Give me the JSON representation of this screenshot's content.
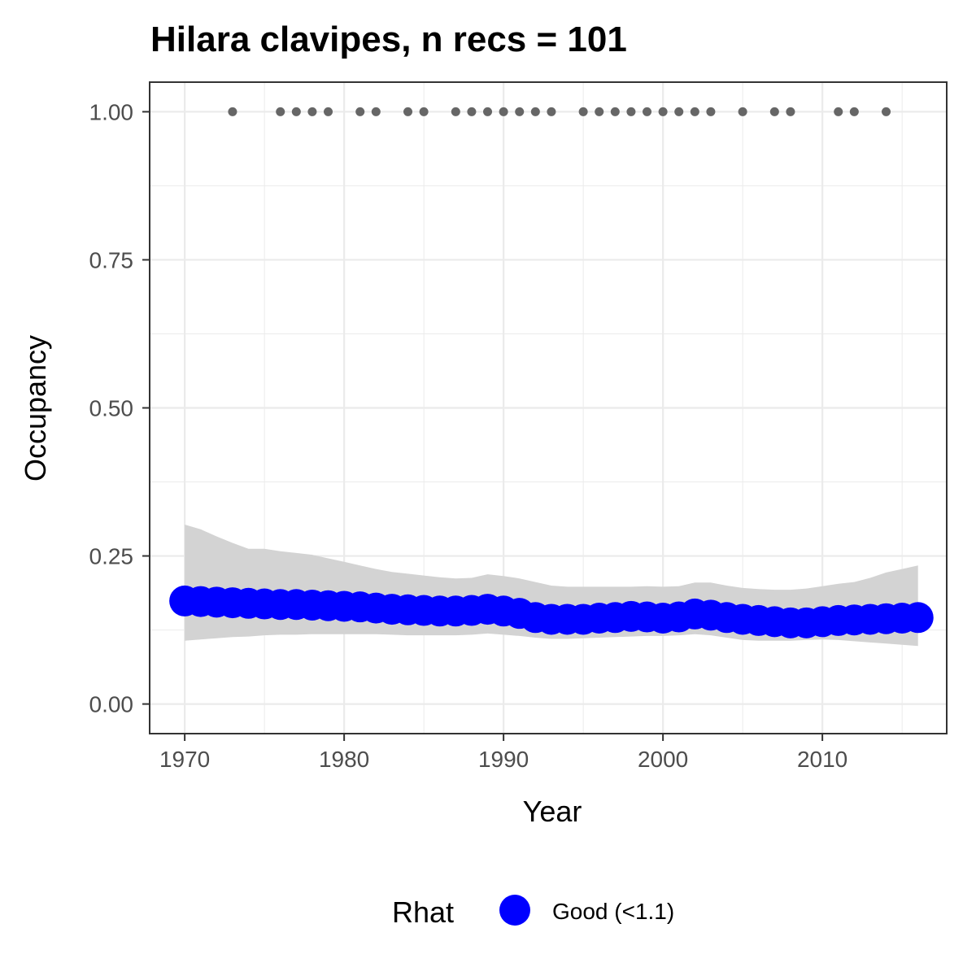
{
  "chart_data": {
    "type": "line",
    "title": "Hilara clavipes, n recs = 101",
    "xlabel": "Year",
    "ylabel": "Occupancy",
    "xlim": [
      1967.8,
      2017.8
    ],
    "ylim": [
      -0.05,
      1.05
    ],
    "x_ticks": [
      1970,
      1980,
      1990,
      2000,
      2010
    ],
    "x_tick_labels": [
      "1970",
      "1980",
      "1990",
      "2000",
      "2010"
    ],
    "y_ticks": [
      0,
      0.25,
      0.5,
      0.75,
      1
    ],
    "y_tick_labels": [
      "0.00",
      "0.25",
      "0.50",
      "0.75",
      "1.00"
    ],
    "grid": true,
    "legend": {
      "position": "bottom",
      "title": "Rhat",
      "entries": [
        {
          "label": "Good (<1.1)",
          "color": "#0000ff"
        }
      ]
    },
    "colors": {
      "series": "#0000ff",
      "ribbon": "#d3d3d3",
      "records": "#666666",
      "grid": "#ebebeb",
      "panel_border": "#333333"
    },
    "record_years": [
      1973,
      1976,
      1977,
      1978,
      1979,
      1981,
      1982,
      1984,
      1985,
      1987,
      1988,
      1989,
      1990,
      1991,
      1992,
      1993,
      1995,
      1996,
      1997,
      1998,
      1999,
      2000,
      2001,
      2002,
      2003,
      2005,
      2007,
      2008,
      2011,
      2012,
      2014
    ],
    "record_value": 1.0,
    "series": [
      {
        "x": [
          1970,
          1971,
          1972,
          1973,
          1974,
          1975,
          1976,
          1977,
          1978,
          1979,
          1980,
          1981,
          1982,
          1983,
          1984,
          1985,
          1986,
          1987,
          1988,
          1989,
          1990,
          1991,
          1992,
          1993,
          1994,
          1995,
          1996,
          1997,
          1998,
          1999,
          2000,
          2001,
          2002,
          2003,
          2004,
          2005,
          2006,
          2007,
          2008,
          2009,
          2010,
          2011,
          2012,
          2013,
          2014,
          2015,
          2016
        ],
        "values": [
          0.174,
          0.173,
          0.172,
          0.171,
          0.17,
          0.169,
          0.168,
          0.168,
          0.167,
          0.166,
          0.165,
          0.164,
          0.162,
          0.16,
          0.159,
          0.158,
          0.157,
          0.157,
          0.158,
          0.16,
          0.157,
          0.153,
          0.146,
          0.143,
          0.143,
          0.143,
          0.145,
          0.146,
          0.148,
          0.147,
          0.145,
          0.147,
          0.152,
          0.15,
          0.146,
          0.143,
          0.141,
          0.139,
          0.137,
          0.137,
          0.139,
          0.141,
          0.142,
          0.143,
          0.144,
          0.145,
          0.146
        ],
        "lower": [
          0.107,
          0.109,
          0.111,
          0.113,
          0.114,
          0.116,
          0.117,
          0.117,
          0.118,
          0.118,
          0.118,
          0.118,
          0.118,
          0.117,
          0.116,
          0.116,
          0.116,
          0.116,
          0.117,
          0.119,
          0.117,
          0.115,
          0.112,
          0.11,
          0.11,
          0.111,
          0.112,
          0.113,
          0.114,
          0.115,
          0.115,
          0.116,
          0.118,
          0.116,
          0.112,
          0.108,
          0.107,
          0.107,
          0.107,
          0.108,
          0.109,
          0.108,
          0.106,
          0.104,
          0.102,
          0.1,
          0.098
        ],
        "upper": [
          0.303,
          0.295,
          0.283,
          0.272,
          0.262,
          0.262,
          0.258,
          0.255,
          0.252,
          0.246,
          0.24,
          0.234,
          0.228,
          0.223,
          0.22,
          0.217,
          0.214,
          0.212,
          0.213,
          0.219,
          0.216,
          0.212,
          0.206,
          0.2,
          0.198,
          0.198,
          0.198,
          0.198,
          0.198,
          0.199,
          0.198,
          0.199,
          0.205,
          0.205,
          0.2,
          0.196,
          0.194,
          0.193,
          0.193,
          0.195,
          0.199,
          0.203,
          0.206,
          0.213,
          0.222,
          0.228,
          0.234
        ]
      }
    ]
  }
}
